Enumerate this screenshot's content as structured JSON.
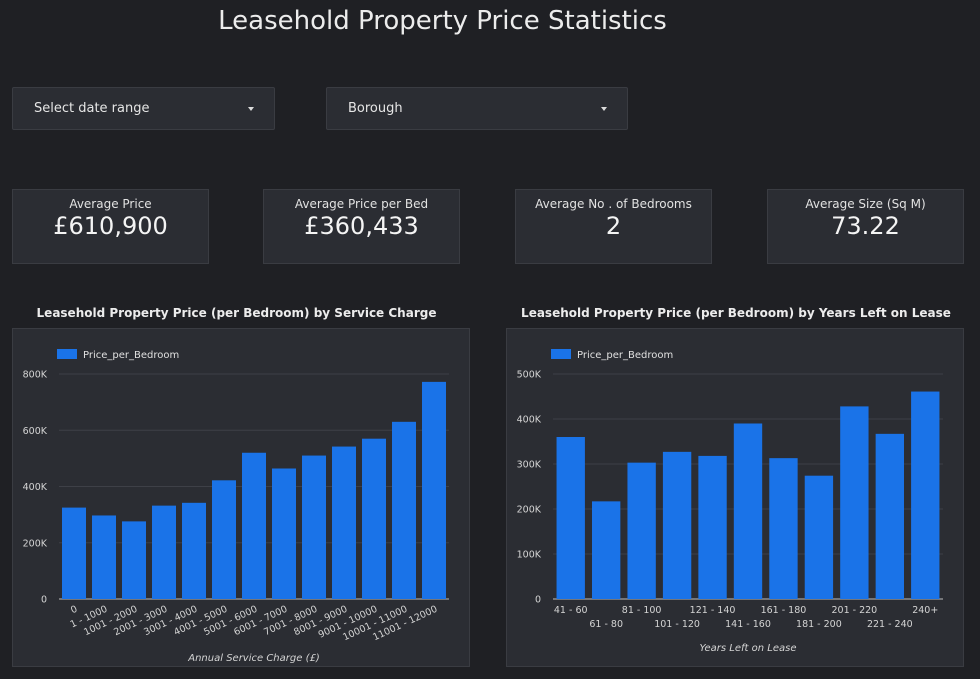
{
  "header": {
    "title": "Leasehold Property Price Statistics"
  },
  "filters": {
    "date_range_label": "Select date range",
    "borough_label": "Borough"
  },
  "kpis": [
    {
      "label": "Average Price",
      "value": "£610,900"
    },
    {
      "label": "Average Price per Bed",
      "value": "£360,433"
    },
    {
      "label": "Average No . of Bedrooms",
      "value": "2"
    },
    {
      "label": "Average Size (Sq M)",
      "value": "73.22"
    }
  ],
  "colors": {
    "bar": "#1a73e8",
    "background": "#1f2024",
    "panel": "#2b2d33"
  },
  "chart_data": [
    {
      "type": "bar",
      "title": "Leasehold Property Price (per Bedroom) by Service Charge",
      "legend": "Price_per_Bedroom",
      "legend_position": "top-left",
      "xlabel": "Annual Service Charge (£)",
      "ylabel": "",
      "ylim": [
        0,
        800000
      ],
      "yticks": [
        0,
        200000,
        400000,
        600000,
        800000
      ],
      "ytick_labels": [
        "0",
        "200K",
        "400K",
        "600K",
        "800K"
      ],
      "categories": [
        "0",
        "1 - 1000",
        "1001 - 2000",
        "2001 - 3000",
        "3001 - 4000",
        "4001 - 5000",
        "5001 - 6000",
        "6001 - 7000",
        "7001 - 8000",
        "8001 - 9000",
        "9001 - 10000",
        "10001 - 11000",
        "11001 - 12000"
      ],
      "values": [
        325000,
        297000,
        276000,
        332000,
        342000,
        422000,
        520000,
        464000,
        510000,
        542000,
        570000,
        630000,
        772000
      ],
      "grid": true
    },
    {
      "type": "bar",
      "title": "Leasehold Property Price (per Bedroom) by Years Left on Lease",
      "legend": "Price_per_Bedroom",
      "legend_position": "top-left",
      "xlabel": "Years Left on Lease",
      "ylabel": "",
      "ylim": [
        0,
        500000
      ],
      "yticks": [
        0,
        100000,
        200000,
        300000,
        400000,
        500000
      ],
      "ytick_labels": [
        "0",
        "100K",
        "200K",
        "300K",
        "400K",
        "500K"
      ],
      "categories": [
        "41 - 60",
        "61 - 80",
        "81 - 100",
        "101 - 120",
        "121 - 140",
        "141 - 160",
        "161 - 180",
        "181 - 200",
        "201 - 220",
        "221 - 240",
        "240+"
      ],
      "values": [
        360000,
        217000,
        303000,
        327000,
        318000,
        390000,
        313000,
        274000,
        428000,
        367000,
        461000
      ],
      "grid": true
    }
  ]
}
